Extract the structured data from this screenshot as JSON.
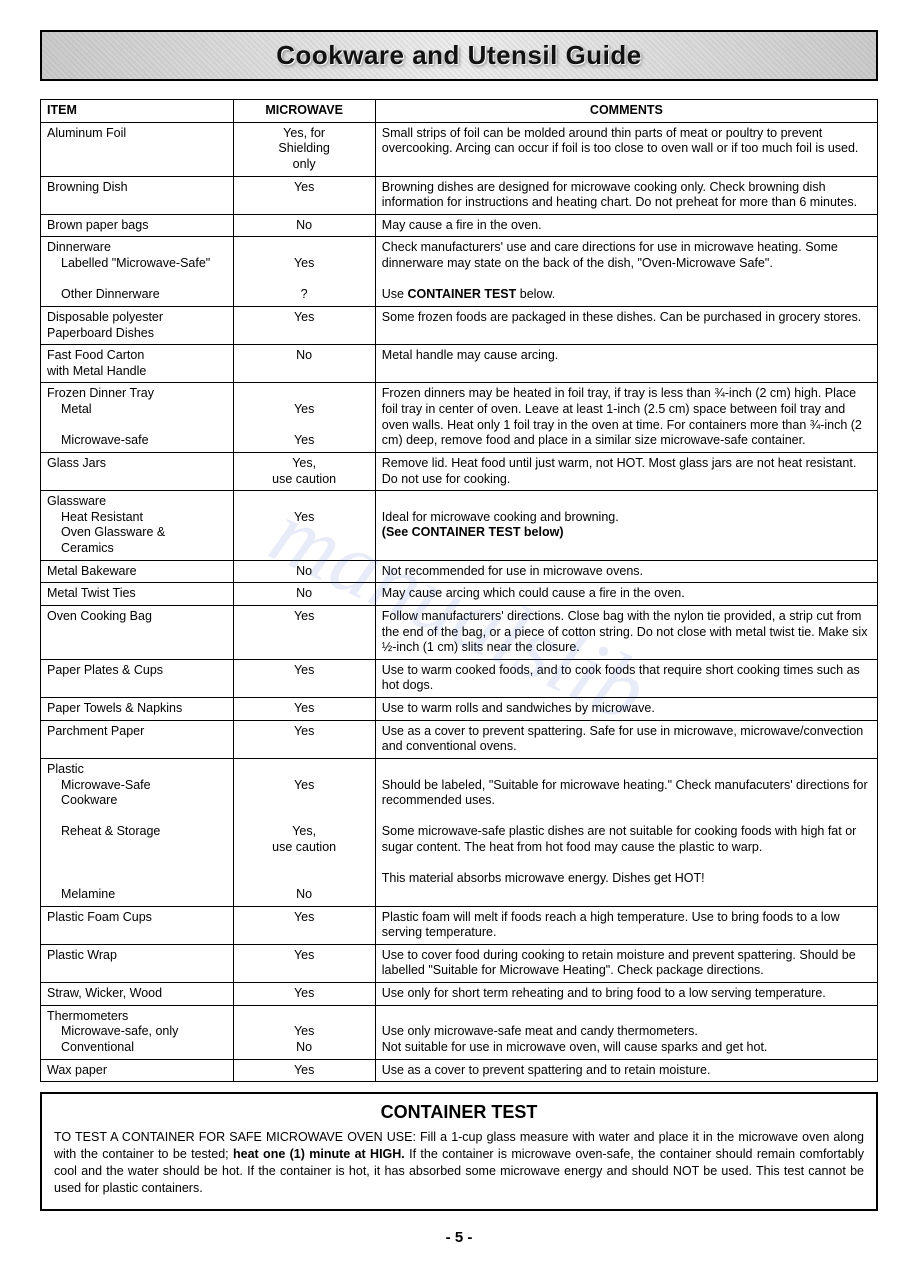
{
  "page": {
    "title": "Cookware and Utensil Guide",
    "page_number": "- 5 -",
    "watermark": "manualslib"
  },
  "headers": {
    "item": "ITEM",
    "microwave": "MICROWAVE",
    "comments": "COMMENTS"
  },
  "rows": [
    {
      "item": [
        "Aluminum Foil"
      ],
      "microwave": [
        "Yes, for",
        "Shielding",
        "only"
      ],
      "comments": [
        "Small strips of foil can be molded around thin parts of meat or poultry to prevent overcooking. Arcing can occur if foil is too close to oven wall or if too much foil is used."
      ]
    },
    {
      "item": [
        "Browning Dish"
      ],
      "microwave": [
        "Yes"
      ],
      "comments": [
        "Browning dishes are designed for microwave cooking only. Check browning dish information for instructions and heating chart. Do not preheat for more than 6 minutes."
      ]
    },
    {
      "item": [
        "Brown paper bags"
      ],
      "microwave": [
        "No"
      ],
      "comments": [
        "May cause a fire in the oven."
      ]
    },
    {
      "item": [
        "Dinnerware",
        "  Labelled \"Microwave-Safe\"",
        "",
        "  Other Dinnerware"
      ],
      "microwave": [
        "",
        "Yes",
        "",
        "?"
      ],
      "comments": [
        "Check manufacturers' use and care directions for use in microwave heating. Some dinnerware may state on the back of the dish, \"Oven-Microwave Safe\".",
        "",
        "Use <b>CONTAINER TEST</b> below."
      ]
    },
    {
      "item": [
        "Disposable polyester",
        "Paperboard Dishes"
      ],
      "microwave": [
        "Yes"
      ],
      "comments": [
        "Some frozen foods are packaged in these dishes. Can be purchased in grocery stores."
      ]
    },
    {
      "item": [
        "Fast Food Carton",
        "with Metal Handle"
      ],
      "microwave": [
        "No"
      ],
      "comments": [
        "Metal handle may cause arcing."
      ]
    },
    {
      "item": [
        "Frozen Dinner Tray",
        "  Metal",
        "",
        "  Microwave-safe"
      ],
      "microwave": [
        "",
        "Yes",
        "",
        "Yes"
      ],
      "comments": [
        "Frozen dinners may be heated in foil tray, if tray is less than ¾-inch (2 cm) high. Place foil tray in center of oven. Leave at least 1-inch (2.5 cm) space between foil tray and oven walls. Heat only 1 foil tray in the oven at  time. For containers more than ¾-inch (2 cm) deep, remove food and place in a similar size microwave-safe container."
      ]
    },
    {
      "item": [
        "Glass Jars"
      ],
      "microwave": [
        "Yes,",
        "use caution"
      ],
      "comments": [
        "Remove lid. Heat food until just warm, not HOT. Most glass jars are not heat resistant. Do not use for cooking."
      ]
    },
    {
      "item": [
        "Glassware",
        "  Heat Resistant",
        "  Oven Glassware &",
        "  Ceramics"
      ],
      "microwave": [
        "",
        "Yes"
      ],
      "comments": [
        "",
        "Ideal for microwave cooking and browning.",
        "<b>(See CONTAINER TEST below)</b>"
      ]
    },
    {
      "item": [
        "Metal Bakeware"
      ],
      "microwave": [
        "No"
      ],
      "comments": [
        "Not recommended for use in microwave ovens."
      ]
    },
    {
      "item": [
        "Metal Twist Ties"
      ],
      "microwave": [
        "No"
      ],
      "comments": [
        "May cause arcing which could cause a fire in the oven."
      ]
    },
    {
      "item": [
        "Oven Cooking Bag"
      ],
      "microwave": [
        "Yes"
      ],
      "comments": [
        "Follow manufacturers' directions. Close bag with the nylon tie provided, a strip cut from the end of the bag, or a piece of cotton string. Do not close with metal twist tie. Make six ½-inch (1 cm) slits near the closure."
      ]
    },
    {
      "item": [
        "Paper Plates & Cups"
      ],
      "microwave": [
        "Yes"
      ],
      "comments": [
        "Use to warm cooked foods, and to cook foods that require short cooking times such as hot dogs."
      ]
    },
    {
      "item": [
        "Paper Towels & Napkins"
      ],
      "microwave": [
        "Yes"
      ],
      "comments": [
        "Use to warm rolls and sandwiches by microwave."
      ]
    },
    {
      "item": [
        "Parchment Paper"
      ],
      "microwave": [
        "Yes"
      ],
      "comments": [
        "Use as a cover to prevent spattering.  Safe for use in microwave, microwave/convection and conventional ovens."
      ]
    },
    {
      "item": [
        "Plastic",
        "  Microwave-Safe",
        "  Cookware",
        "",
        "  Reheat & Storage",
        "",
        "",
        "",
        "  Melamine"
      ],
      "microwave": [
        "",
        "Yes",
        "",
        "",
        "Yes,",
        "use caution",
        "",
        "",
        "No"
      ],
      "comments": [
        "",
        "Should be labeled, \"Suitable for microwave heating.\" Check manufacuters' directions for recommended uses.",
        "",
        "Some microwave-safe plastic dishes are not suitable for cooking foods with high fat or sugar content.  The heat from hot food may cause the plastic to warp.",
        "",
        "This material absorbs microwave energy.  Dishes get HOT!"
      ]
    },
    {
      "item": [
        "Plastic Foam Cups"
      ],
      "microwave": [
        "Yes"
      ],
      "comments": [
        "Plastic foam will melt if foods reach a high temperature.  Use to bring foods to a low serving temperature."
      ]
    },
    {
      "item": [
        "Plastic Wrap"
      ],
      "microwave": [
        "Yes"
      ],
      "comments": [
        "Use to cover food during cooking to retain moisture and prevent spattering. Should be labelled \"Suitable for Microwave Heating\".  Check package directions."
      ]
    },
    {
      "item": [
        "Straw, Wicker, Wood"
      ],
      "microwave": [
        "Yes"
      ],
      "comments": [
        "Use only for short term reheating and to bring food to a low serving temperature."
      ]
    },
    {
      "item": [
        "Thermometers",
        "  Microwave-safe, only",
        "  Conventional"
      ],
      "microwave": [
        "",
        "Yes",
        "No"
      ],
      "comments": [
        "",
        "Use only microwave-safe meat and candy thermometers.",
        "Not suitable for use in microwave oven, will cause sparks and get hot."
      ]
    },
    {
      "item": [
        "Wax paper"
      ],
      "microwave": [
        "Yes"
      ],
      "comments": [
        "Use as a cover to prevent spattering and to retain moisture."
      ]
    }
  ],
  "container_test": {
    "heading": "CONTAINER TEST",
    "body_html": "TO TEST A CONTAINER FOR SAFE MICROWAVE OVEN USE: Fill a 1-cup glass measure with water and place it in the microwave oven along with the container to be tested; <b>heat one (1) minute at HIGH.</b> If the container is microwave oven-safe, the container should remain comfortably cool and the water should be hot. If the container is hot, it has absorbed some microwave energy and should NOT be used. This test cannot be used for plastic containers."
  }
}
